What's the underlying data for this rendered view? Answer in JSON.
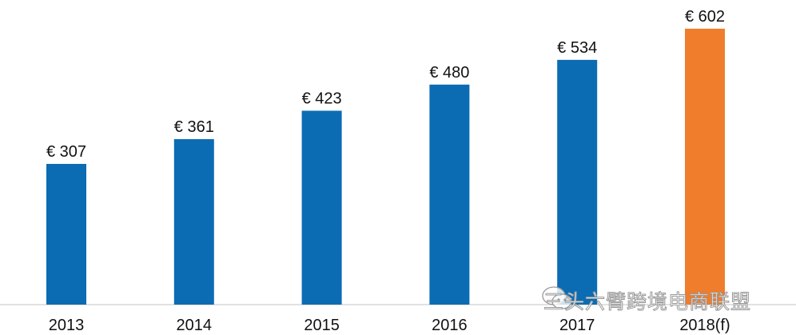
{
  "chart_data": {
    "type": "bar",
    "title": "",
    "xlabel": "",
    "ylabel": "",
    "categories": [
      "2013",
      "2014",
      "2015",
      "2016",
      "2017",
      "2018(f)"
    ],
    "values": [
      307,
      361,
      423,
      480,
      534,
      602
    ],
    "data_labels": [
      "€ 307",
      "€ 361",
      "€ 423",
      "€ 480",
      "€ 534",
      "€ 602"
    ],
    "ylim": [
      0,
      640
    ],
    "grid": false,
    "legend": "none",
    "colors": [
      "#0b6cb3",
      "#0b6cb3",
      "#0b6cb3",
      "#0b6cb3",
      "#0b6cb3",
      "#ef7d2c"
    ]
  },
  "watermark": "三头六臂跨境电商联盟"
}
